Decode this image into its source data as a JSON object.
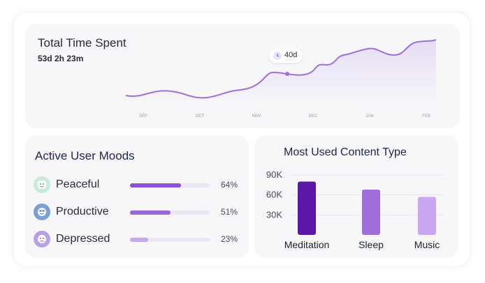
{
  "time_spent": {
    "title": "Total Time Spent",
    "total": "53d 2h 23m",
    "tooltip": "40d",
    "months": [
      "SEP",
      "OCT",
      "NOV",
      "DEC",
      "JAN",
      "FEB"
    ]
  },
  "moods": {
    "title": "Active User Moods",
    "items": [
      {
        "label": "Peaceful",
        "percent_text": "64%",
        "value": 0.64,
        "color": "#8b52d6",
        "icon_bg": "#c9ead8",
        "icon": "peaceful-face-icon"
      },
      {
        "label": "Productive",
        "percent_text": "51%",
        "value": 0.51,
        "color": "#9a66dd",
        "icon_bg": "#7a9fd8",
        "icon": "productive-face-icon"
      },
      {
        "label": "Depressed",
        "percent_text": "23%",
        "value": 0.23,
        "color": "#c7a6ec",
        "icon_bg": "#b9a0e6",
        "icon": "depressed-face-icon"
      }
    ]
  },
  "content": {
    "title": "Most Used Content Type"
  },
  "chart_data": {
    "type": "bar",
    "title": "Most Used Content Type",
    "categories": [
      "Meditation",
      "Sleep",
      "Music"
    ],
    "values": [
      80000,
      68000,
      57000
    ],
    "colors": [
      "#5b17a8",
      "#a06ddd",
      "#cba6f0"
    ],
    "yticks": [
      "90K",
      "60K",
      "30K"
    ],
    "ylim": [
      0,
      100000
    ],
    "grid": true
  }
}
